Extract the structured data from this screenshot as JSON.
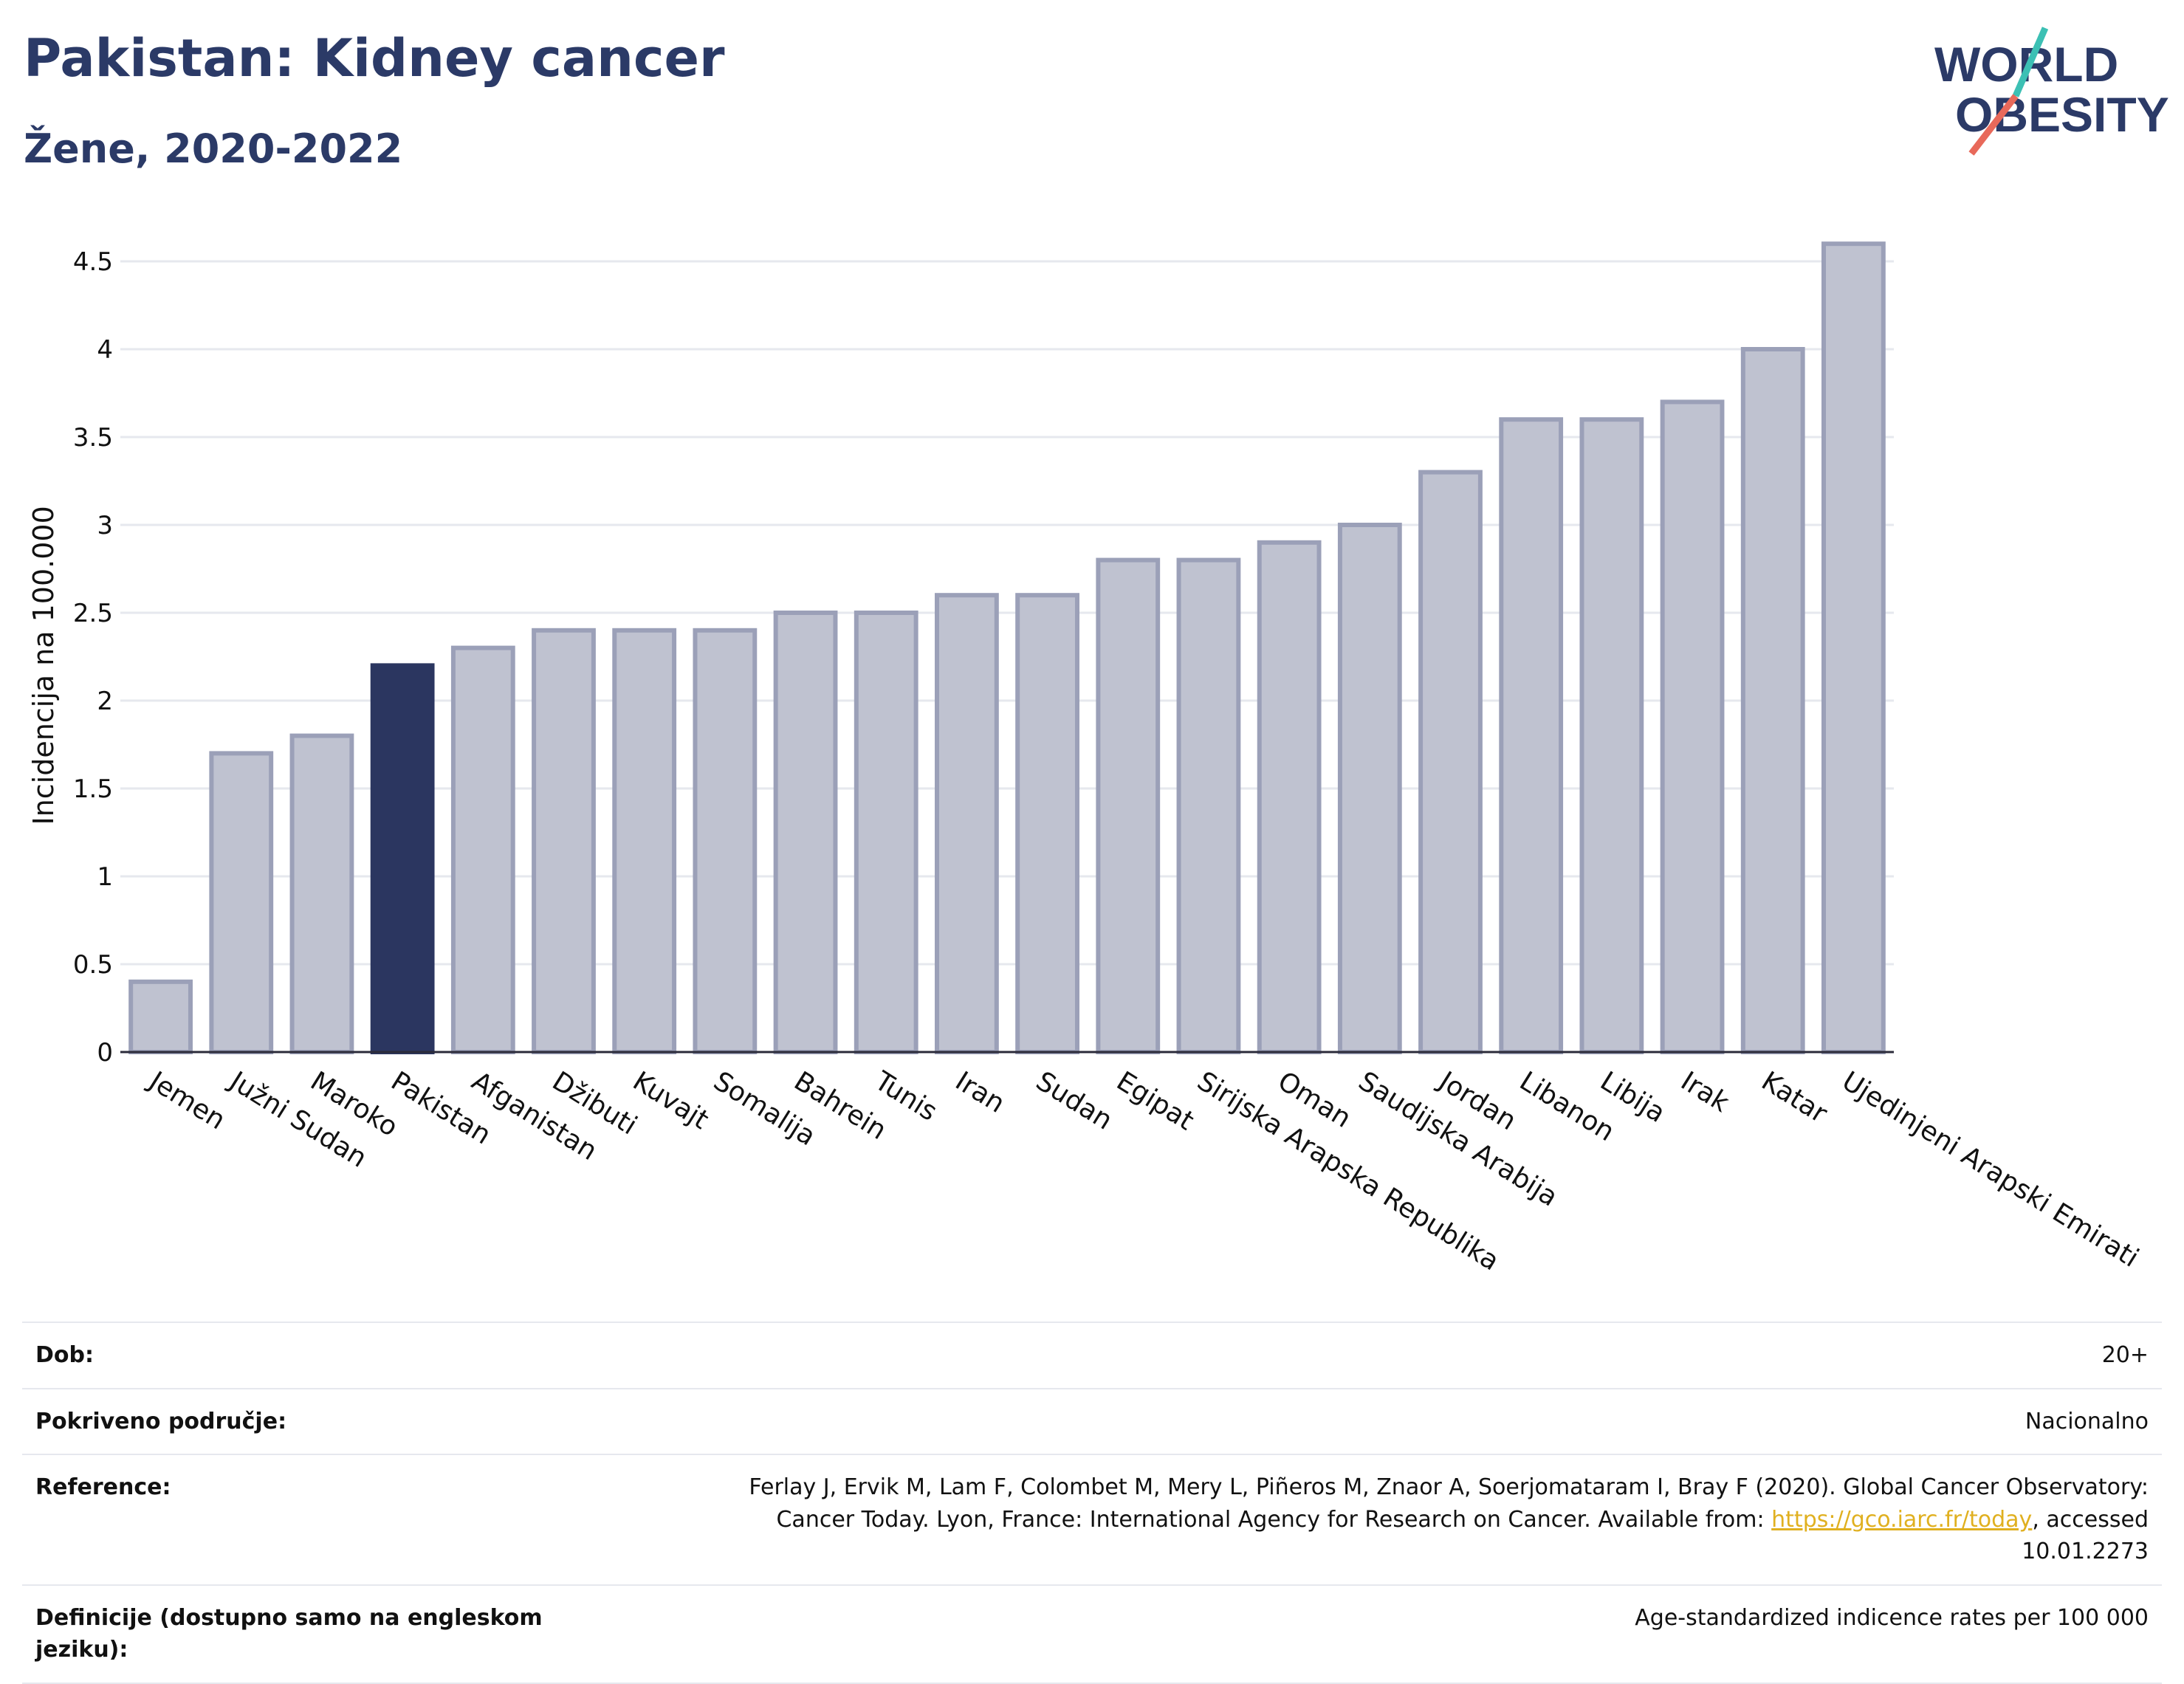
{
  "header": {
    "title": "Pakistan: Kidney cancer",
    "subtitle": "Žene, 2020-2022"
  },
  "logo": {
    "line1": "WORLD",
    "line2": "OBESITY",
    "colors": {
      "text": "#2b3a67",
      "slash_red": "#e8695a",
      "slash_teal": "#3cc0b4"
    }
  },
  "chart_data": {
    "type": "bar",
    "ylabel": "Incidencija na 100.000",
    "xlabel": "",
    "ylim": [
      0,
      4.6
    ],
    "yticks": [
      0,
      0.5,
      1,
      1.5,
      2,
      2.5,
      3,
      3.5,
      4,
      4.5
    ],
    "ytick_labels": [
      "0",
      "0.5",
      "1",
      "1.5",
      "2",
      "2.5",
      "3",
      "3.5",
      "4",
      "4.5"
    ],
    "grid": true,
    "highlight": "Pakistan",
    "colors": {
      "bar": "#bfc2d0",
      "bar_edge": "#9ba0b8",
      "highlight": "#2b3660",
      "grid": "#e6e8ee"
    },
    "categories": [
      "Jemen",
      "Južni Sudan",
      "Maroko",
      "Pakistan",
      "Afganistan",
      "Džibuti",
      "Kuvajt",
      "Somalija",
      "Bahrein",
      "Tunis",
      "Iran",
      "Sudan",
      "Egipat",
      "Sirijska Arapska Republika",
      "Oman",
      "Saudijska Arabija",
      "Jordan",
      "Libanon",
      "Libija",
      "Irak",
      "Katar",
      "Ujedinjeni Arapski Emirati"
    ],
    "values": [
      0.4,
      1.7,
      1.8,
      2.2,
      2.3,
      2.4,
      2.4,
      2.4,
      2.5,
      2.5,
      2.6,
      2.6,
      2.8,
      2.8,
      2.9,
      3.0,
      3.3,
      3.6,
      3.6,
      3.7,
      4.0,
      4.6
    ]
  },
  "info": {
    "rows": [
      {
        "label": "Dob:",
        "value": "20+"
      },
      {
        "label": "Pokriveno područje:",
        "value": "Nacionalno"
      },
      {
        "label": "Reference:",
        "value_pre": "Ferlay J, Ervik M, Lam F, Colombet M, Mery L, Piñeros M, Znaor A, Soerjomataram I, Bray F (2020). Global Cancer Observatory: Cancer Today. Lyon, France: International Agency for Research on Cancer. Available from: ",
        "link": "https://gco.iarc.fr/today",
        "value_post": ", accessed 10.01.2273"
      },
      {
        "label": "Definicije (dostupno samo na engleskom jeziku):",
        "value": "Age-standardized indicence rates per 100 000"
      }
    ]
  }
}
